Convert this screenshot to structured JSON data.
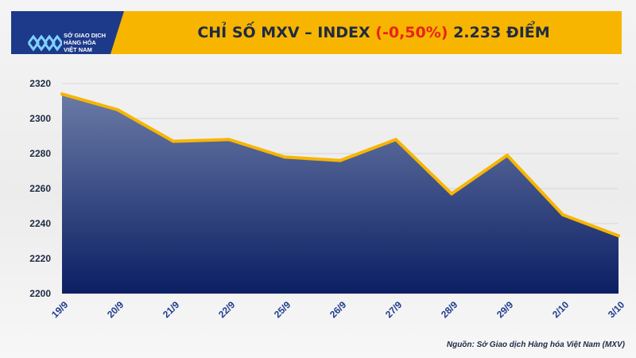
{
  "header": {
    "logo_lines": [
      "SỞ GIAO DỊCH",
      "HÀNG HÓA",
      "VIỆT NAM"
    ],
    "title_prefix": "CHỈ SỐ MXV – INDEX ",
    "title_change": "(-0,50%)",
    "title_suffix": " 2.233 ĐIỂM"
  },
  "colors": {
    "banner": "#f7b500",
    "logo_bg": "#1d3a8a",
    "line": "#f7b500",
    "area_top": "#6a7aa6",
    "area_bottom": "#0b1f63",
    "negative": "#e8231d"
  },
  "chart_data": {
    "type": "area",
    "title": "CHỈ SỐ MXV – INDEX (-0,50%) 2.233 ĐIỂM",
    "xlabel": "",
    "ylabel": "",
    "categories": [
      "19/9",
      "20/9",
      "21/9",
      "22/9",
      "25/9",
      "26/9",
      "27/9",
      "28/9",
      "29/9",
      "2/10",
      "3/10"
    ],
    "values": [
      2314,
      2305,
      2287,
      2288,
      2278,
      2276,
      2288,
      2257,
      2279,
      2245,
      2233
    ],
    "ylim": [
      2200,
      2320
    ],
    "yticks": [
      "2200",
      "2220",
      "2240",
      "2260",
      "2280",
      "2300",
      "2320"
    ],
    "grid": true,
    "legend": "none"
  },
  "footer": {
    "source": "Nguồn: Sở Giao dịch Hàng hóa Việt Nam (MXV)"
  }
}
